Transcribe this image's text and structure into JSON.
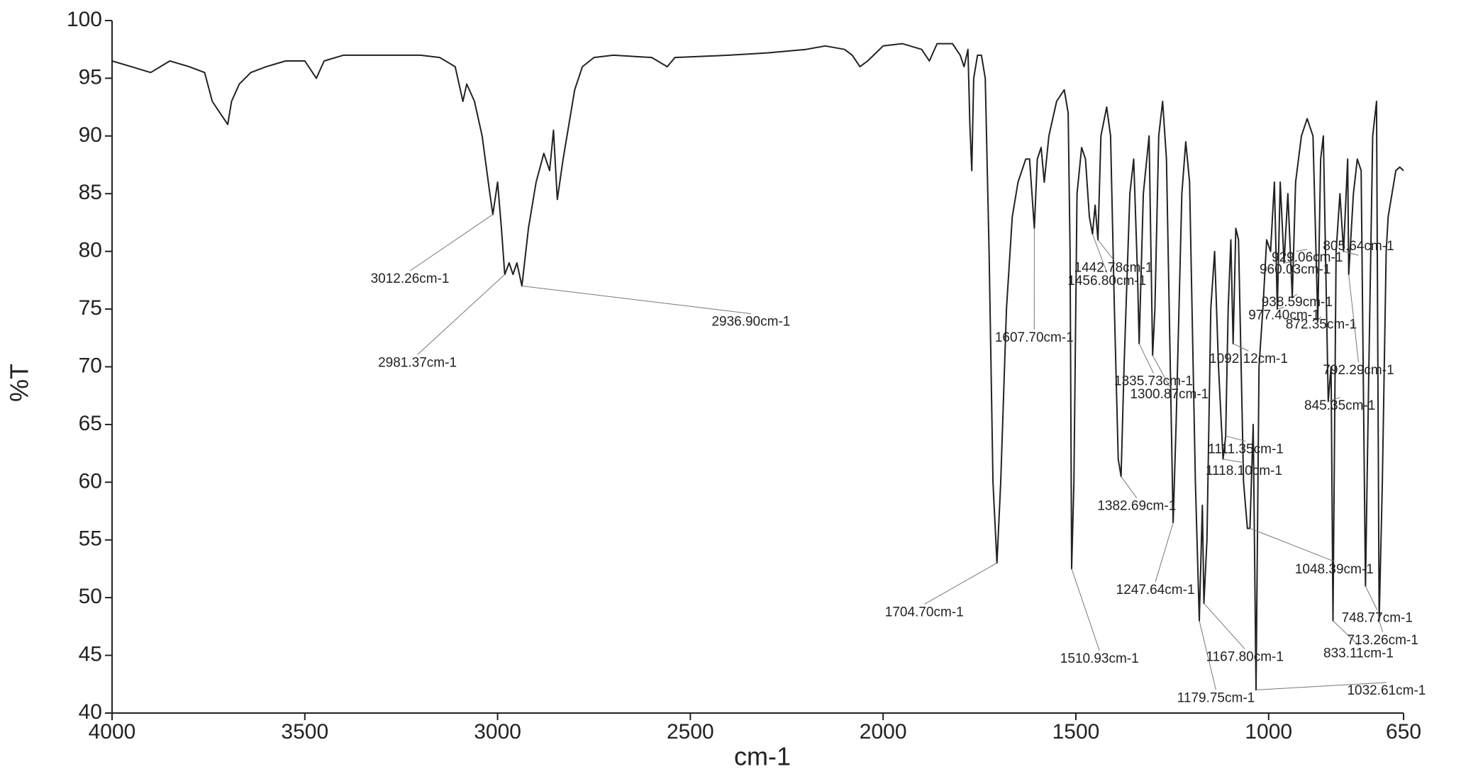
{
  "chart_data": {
    "type": "line",
    "xlabel": "cm-1",
    "ylabel": "%T",
    "xlim": [
      4000,
      650
    ],
    "ylim": [
      40,
      100
    ],
    "xticks": [
      4000,
      3500,
      3000,
      2500,
      2000,
      1500,
      1000,
      650
    ],
    "yticks": [
      40,
      45,
      50,
      55,
      60,
      65,
      70,
      75,
      80,
      85,
      90,
      95,
      100
    ],
    "grid": false,
    "x": [
      4000,
      3950,
      3900,
      3850,
      3800,
      3760,
      3740,
      3720,
      3700,
      3690,
      3670,
      3640,
      3600,
      3550,
      3500,
      3470,
      3450,
      3400,
      3300,
      3200,
      3150,
      3110,
      3090,
      3080,
      3060,
      3040,
      3020,
      3012.26,
      3000,
      2990,
      2981.37,
      2970,
      2960,
      2950,
      2936.9,
      2920,
      2900,
      2880,
      2865,
      2855,
      2845,
      2830,
      2800,
      2780,
      2750,
      2700,
      2600,
      2560,
      2540,
      2400,
      2300,
      2200,
      2150,
      2100,
      2080,
      2060,
      2040,
      2000,
      1950,
      1900,
      1880,
      1860,
      1820,
      1800,
      1790,
      1780,
      1775,
      1770,
      1765,
      1755,
      1745,
      1735,
      1725,
      1715,
      1704.7,
      1695,
      1680,
      1665,
      1650,
      1630,
      1620,
      1607.7,
      1600,
      1590,
      1582,
      1570,
      1550,
      1530,
      1520,
      1515,
      1510.93,
      1505,
      1497,
      1485,
      1475,
      1465,
      1456.8,
      1450,
      1442.78,
      1435,
      1420,
      1410,
      1400,
      1390,
      1382.69,
      1375,
      1360,
      1350,
      1340,
      1335.73,
      1325,
      1310,
      1300.87,
      1295,
      1285,
      1275,
      1265,
      1255,
      1247.64,
      1240,
      1225,
      1215,
      1205,
      1190,
      1179.75,
      1172,
      1167.8,
      1160,
      1150,
      1140,
      1130,
      1118.1,
      1111.35,
      1105,
      1098,
      1092.12,
      1085,
      1078,
      1065,
      1055,
      1048.39,
      1040,
      1032.61,
      1025,
      1015,
      1005,
      995,
      985,
      977.4,
      970,
      960.03,
      950,
      938.59,
      930,
      915,
      900,
      885,
      872.35,
      865,
      858,
      845.35,
      838,
      833.11,
      825,
      815,
      805.64,
      795,
      792.29,
      780,
      770,
      760,
      748.77,
      740,
      730,
      720,
      713.26,
      705,
      695,
      690,
      680,
      670,
      660,
      650
    ],
    "series": [
      {
        "color": "#222222",
        "values": [
          96.5,
          96,
          95.5,
          96.5,
          96,
          95.5,
          93,
          92,
          91,
          93,
          94.5,
          95.5,
          96,
          96.5,
          96.5,
          95,
          96.5,
          97,
          97,
          97,
          96.8,
          96,
          93,
          94.5,
          93,
          90,
          85,
          83.2,
          86,
          82,
          78,
          79,
          78,
          79,
          77,
          82,
          86,
          88.5,
          87,
          90.5,
          84.5,
          88,
          94,
          96,
          96.8,
          97,
          96.8,
          96,
          96.8,
          97,
          97.2,
          97.5,
          97.8,
          97.5,
          97,
          96,
          96.5,
          97.8,
          98,
          97.5,
          96.5,
          98,
          98,
          97,
          96,
          97.5,
          91,
          87,
          95,
          97,
          97,
          95,
          80,
          60,
          53,
          60,
          75,
          83,
          86,
          88,
          88,
          82,
          88,
          89,
          86,
          90,
          93,
          94,
          92,
          80,
          52.5,
          60,
          85,
          89,
          88,
          83,
          81.5,
          84,
          81,
          90,
          92.5,
          90,
          75,
          62,
          60.5,
          70,
          85,
          88,
          78,
          72,
          85,
          90,
          71,
          75,
          90,
          93,
          88,
          70,
          56.5,
          65,
          85,
          89.5,
          86,
          60,
          48,
          58,
          49.5,
          55,
          75,
          80,
          70,
          62,
          64,
          75,
          81,
          72,
          82,
          81,
          60,
          56,
          56,
          65,
          42,
          70,
          75,
          81,
          80,
          86,
          75,
          86,
          79,
          85,
          76,
          86,
          90,
          91.5,
          90,
          74,
          88,
          90,
          67,
          70,
          48,
          80,
          85,
          80,
          88,
          78,
          85,
          88,
          87,
          51,
          70,
          90,
          93,
          48,
          60,
          80,
          83,
          85,
          87,
          87.3,
          87
        ]
      }
    ],
    "annotations": [
      {
        "x": 3012.26,
        "y": 83.2,
        "label": "3012.26cm-1"
      },
      {
        "x": 2981.37,
        "y": 78,
        "label": "2981.37cm-1"
      },
      {
        "x": 2936.9,
        "y": 77,
        "label": "2936.90cm-1"
      },
      {
        "x": 1704.7,
        "y": 53,
        "label": "1704.70cm-1"
      },
      {
        "x": 1607.7,
        "y": 82,
        "label": "1607.70cm-1"
      },
      {
        "x": 1510.93,
        "y": 52.5,
        "label": "1510.93cm-1"
      },
      {
        "x": 1456.8,
        "y": 81.5,
        "label": "1456.80cm-1"
      },
      {
        "x": 1442.78,
        "y": 81,
        "label": "1442.78cm-1"
      },
      {
        "x": 1382.69,
        "y": 60.5,
        "label": "1382.69cm-1"
      },
      {
        "x": 1335.73,
        "y": 72,
        "label": "1335.73cm-1"
      },
      {
        "x": 1300.87,
        "y": 71,
        "label": "1300.87cm-1"
      },
      {
        "x": 1247.64,
        "y": 56.5,
        "label": "1247.64cm-1"
      },
      {
        "x": 1179.75,
        "y": 48,
        "label": "1179.75cm-1"
      },
      {
        "x": 1167.8,
        "y": 49.5,
        "label": "1167.80cm-1"
      },
      {
        "x": 1118.1,
        "y": 62,
        "label": "1118.10cm-1"
      },
      {
        "x": 1111.35,
        "y": 64,
        "label": "1111.35cm-1"
      },
      {
        "x": 1092.12,
        "y": 72,
        "label": "1092.12cm-1"
      },
      {
        "x": 1048.39,
        "y": 56,
        "label": "1048.39cm-1"
      },
      {
        "x": 1032.61,
        "y": 42,
        "label": "1032.61cm-1"
      },
      {
        "x": 977.4,
        "y": 75,
        "label": "977.40cm-1"
      },
      {
        "x": 960.03,
        "y": 79,
        "label": "960.03cm-1"
      },
      {
        "x": 938.59,
        "y": 76,
        "label": "938.59cm-1"
      },
      {
        "x": 929.06,
        "y": 80,
        "label": "929.06cm-1"
      },
      {
        "x": 872.35,
        "y": 74,
        "label": "872.35cm-1"
      },
      {
        "x": 845.35,
        "y": 67,
        "label": "845.35cm-1"
      },
      {
        "x": 833.11,
        "y": 48,
        "label": "833.11cm-1"
      },
      {
        "x": 805.64,
        "y": 80,
        "label": "805.64cm-1"
      },
      {
        "x": 792.29,
        "y": 78,
        "label": "792.29cm-1"
      },
      {
        "x": 748.77,
        "y": 51,
        "label": "748.77cm-1"
      },
      {
        "x": 713.26,
        "y": 48,
        "label": "713.26cm-1"
      }
    ]
  }
}
